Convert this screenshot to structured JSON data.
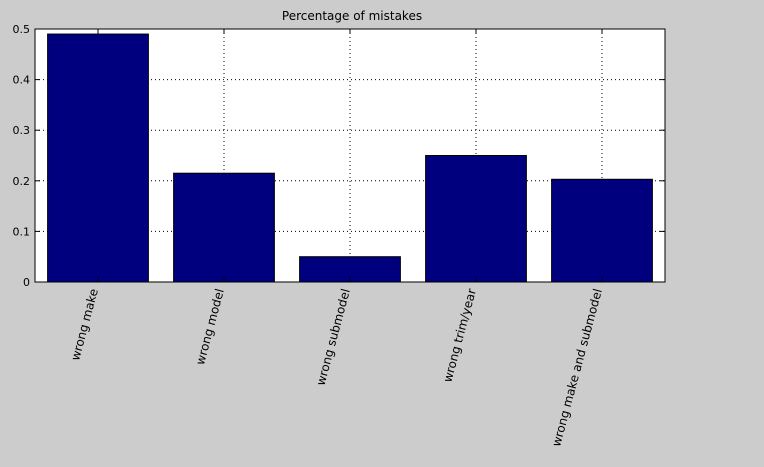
{
  "colors": {
    "figure_background": "#cccccc",
    "axes_background": "#ffffff",
    "bar_fill": "#00007f",
    "bar_edge": "#000000",
    "grid": "#000000"
  },
  "chart_data": {
    "type": "bar",
    "title": "Percentage of mistakes",
    "xlabel": "",
    "ylabel": "",
    "categories": [
      "wrong make",
      "wrong model",
      "wrong submodel",
      "wrong trim/year",
      "wrong make and submodel"
    ],
    "values": [
      0.49,
      0.215,
      0.05,
      0.25,
      0.203
    ],
    "ylim": [
      0,
      0.5
    ],
    "yticks": [
      "0",
      "0.1",
      "0.2",
      "0.3",
      "0.4",
      "0.5"
    ],
    "grid": "on (dotted)",
    "legend": "none"
  }
}
